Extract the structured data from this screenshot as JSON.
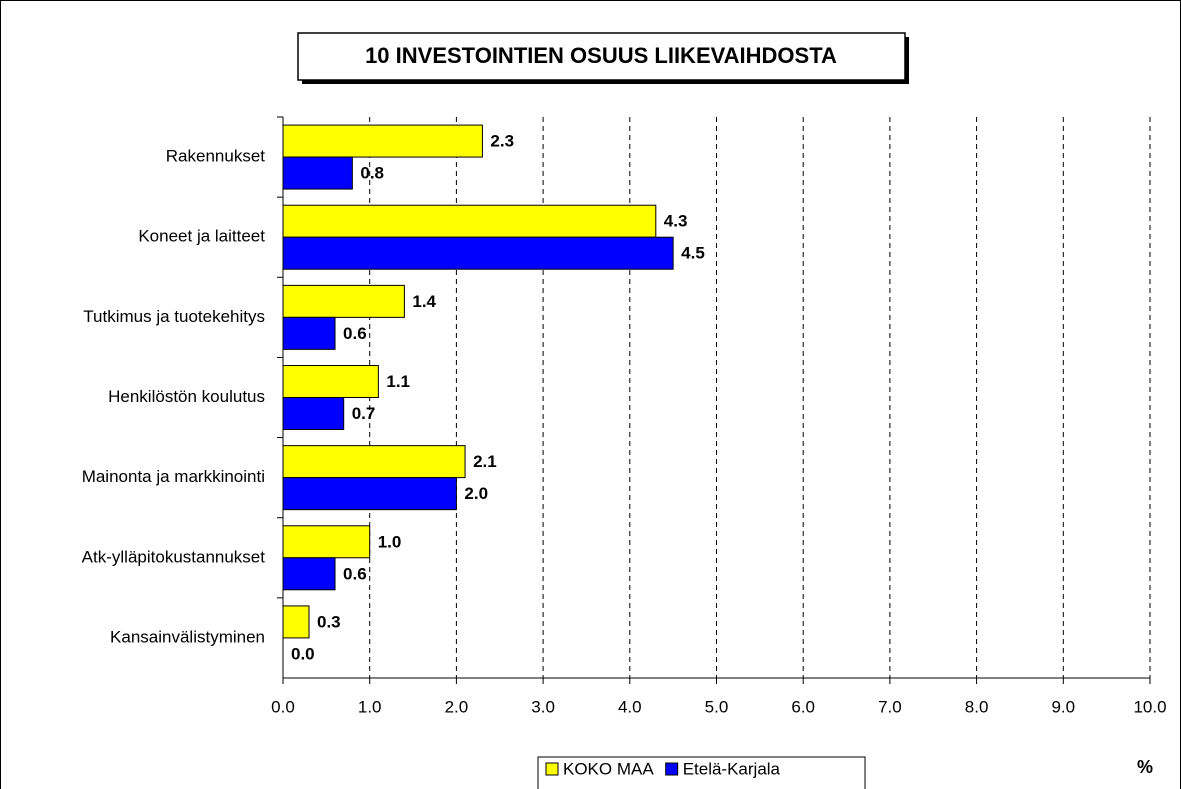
{
  "chart_data": {
    "type": "bar",
    "orientation": "horizontal",
    "title": "10 INVESTOINTIEN OSUUS LIIKEVAIHDOSTA",
    "x_label": "%",
    "categories": [
      "Rakennukset",
      "Koneet ja laitteet",
      "Tutkimus ja tuotekehitys",
      "Henkilöstön koulutus",
      "Mainonta ja markkinointi",
      "Atk-ylläpitokustannukset",
      "Kansainvälistyminen"
    ],
    "series": [
      {
        "name": "KOKO MAA",
        "color": "#ffff00",
        "values": [
          2.3,
          4.3,
          1.4,
          1.1,
          2.1,
          1.0,
          0.3
        ],
        "value_labels": [
          "2.3",
          "4.3",
          "1.4",
          "1.1",
          "2.1",
          "1.0",
          "0.3"
        ]
      },
      {
        "name": "Etelä-Karjala",
        "color": "#0000ff",
        "values": [
          0.8,
          4.5,
          0.6,
          0.7,
          2.0,
          0.6,
          0.0
        ],
        "value_labels": [
          "0.8",
          "4.5",
          "0.6",
          "0.7",
          "2.0",
          "0.6",
          "0.0"
        ]
      }
    ],
    "xlim": [
      0,
      10
    ],
    "xticks": [
      {
        "value": 0,
        "label": "0.0"
      },
      {
        "value": 1,
        "label": "1.0"
      },
      {
        "value": 2,
        "label": "2.0"
      },
      {
        "value": 3,
        "label": "3.0"
      },
      {
        "value": 4,
        "label": "4.0"
      },
      {
        "value": 5,
        "label": "5.0"
      },
      {
        "value": 6,
        "label": "6.0"
      },
      {
        "value": 7,
        "label": "7.0"
      },
      {
        "value": 8,
        "label": "8.0"
      },
      {
        "value": 9,
        "label": "9.0"
      },
      {
        "value": 10,
        "label": "10.0"
      }
    ],
    "grid": true,
    "legend": "bottom"
  }
}
